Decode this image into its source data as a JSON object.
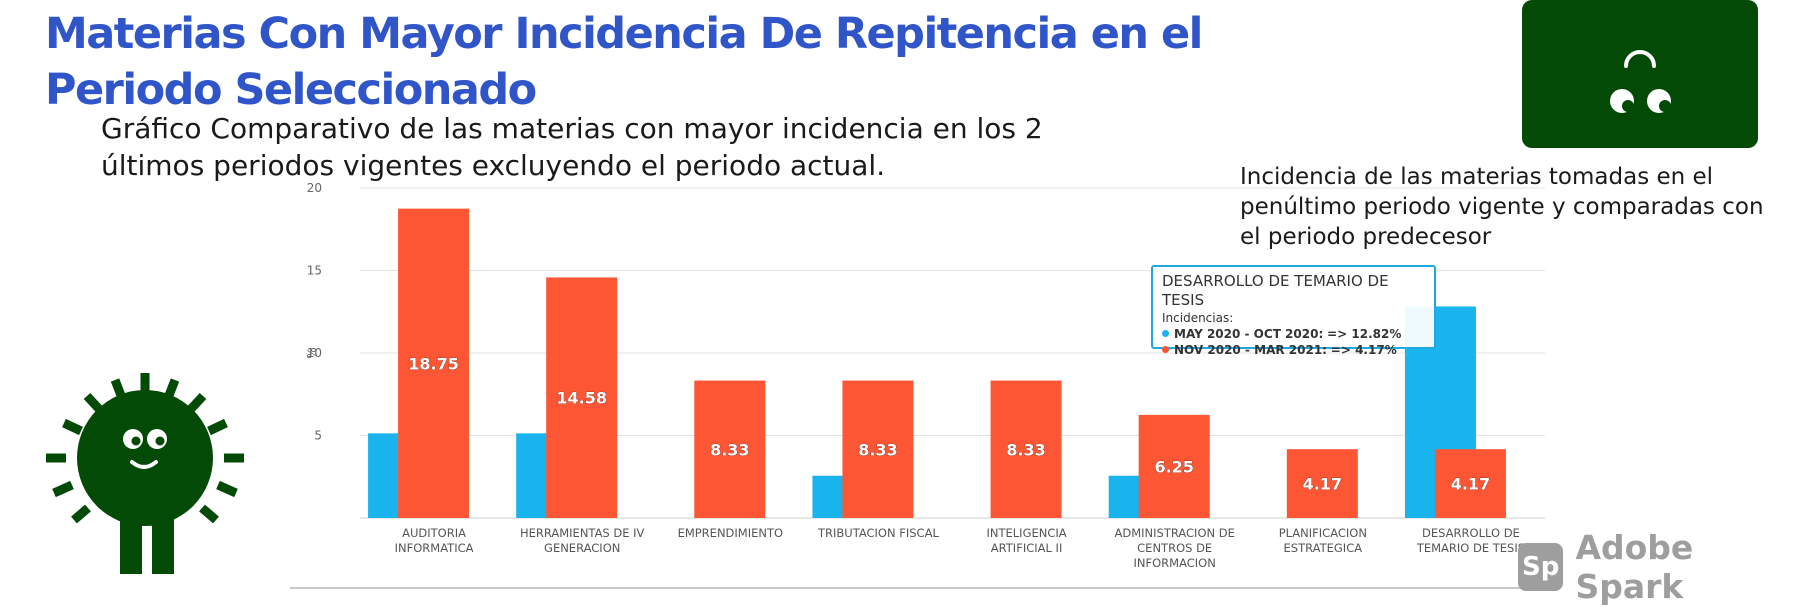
{
  "header": {
    "title": "Materias Con Mayor Incidencia De Repitencia en el Periodo Seleccionado",
    "subtitle": "Gráfico Comparativo de las materias con mayor incidencia en los 2 últimos periodos vigentes excluyendo el periodo actual.",
    "side_note": "Incidencia de las materias tomadas en el penúltimo periodo vigente y comparadas con el periodo predecesor"
  },
  "branding": {
    "logo_icon": "alien-face-icon",
    "logo_bg": "#034a06",
    "mascot_icon": "sun-mascot-icon",
    "watermark_badge": "Sp",
    "watermark_text": "Adobe Spark"
  },
  "tooltip": {
    "title": "DESARROLLO DE TEMARIO DE TESIS",
    "label": "Incidencias:",
    "lines": [
      {
        "period": "MAY 2020 - OCT 2020:",
        "value": "=> 12.82%",
        "color": "#19b3ee"
      },
      {
        "period": "NOV 2020 - MAR 2021:",
        "value": "=> 4.17%",
        "color": "#fd5635"
      }
    ]
  },
  "chart_data": {
    "type": "bar",
    "ylabel": "%",
    "ylim": [
      0,
      20
    ],
    "yticks": [
      5,
      10,
      15,
      20
    ],
    "grid": true,
    "categories": [
      [
        "AUDITORIA",
        "INFORMATICA"
      ],
      [
        "HERRAMIENTAS DE IV",
        "GENERACION"
      ],
      [
        "EMPRENDIMIENTO"
      ],
      [
        "TRIBUTACION FISCAL"
      ],
      [
        "INTELIGENCIA",
        "ARTIFICIAL II"
      ],
      [
        "ADMINISTRACION DE",
        "CENTROS DE",
        "INFORMACION"
      ],
      [
        "PLANIFICACION",
        "ESTRATEGICA"
      ],
      [
        "DESARROLLO DE",
        "TEMARIO DE TESIS"
      ]
    ],
    "series": [
      {
        "name": "MAY 2020 - OCT 2020",
        "color": "#19b3ee",
        "values": [
          5.13,
          5.13,
          0,
          2.56,
          0,
          2.56,
          0,
          12.82
        ],
        "labels": false
      },
      {
        "name": "NOV 2020 - MAR 2021",
        "color": "#fd5635",
        "values": [
          18.75,
          14.58,
          8.33,
          8.33,
          8.33,
          6.25,
          4.17,
          4.17
        ],
        "labels": true
      }
    ]
  }
}
